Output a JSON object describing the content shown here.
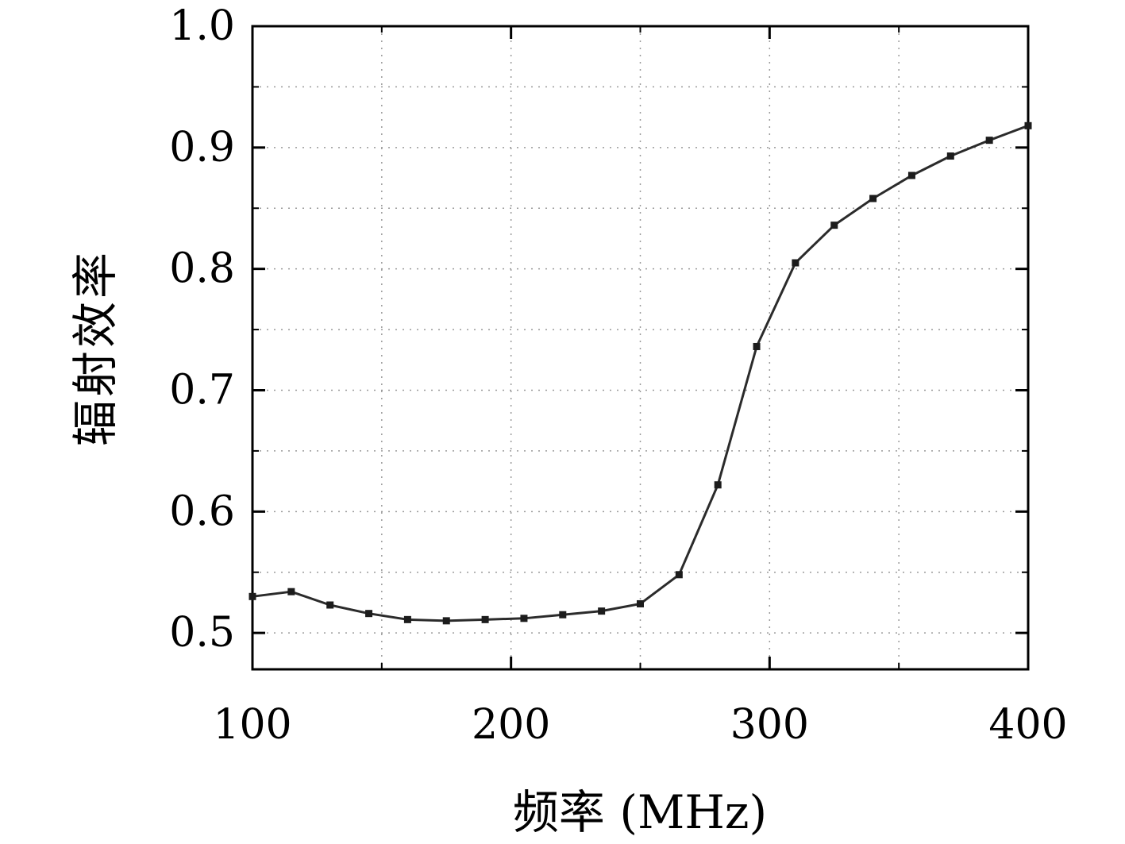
{
  "chart_data": {
    "type": "line",
    "title": "",
    "xlabel": "频率 (MHz)",
    "ylabel": "辐射效率",
    "x": [
      100,
      115,
      130,
      145,
      160,
      175,
      190,
      205,
      220,
      235,
      250,
      265,
      280,
      295,
      310,
      325,
      340,
      355,
      370,
      385,
      400
    ],
    "values": [
      0.53,
      0.534,
      0.523,
      0.516,
      0.511,
      0.51,
      0.511,
      0.512,
      0.515,
      0.518,
      0.524,
      0.548,
      0.622,
      0.736,
      0.805,
      0.836,
      0.858,
      0.877,
      0.893,
      0.906,
      0.918
    ],
    "xlim": [
      100,
      400
    ],
    "ylim": [
      0.47,
      1.0
    ],
    "x_major_ticks": [
      100,
      200,
      300,
      400
    ],
    "x_tick_labels": [
      "100",
      "200",
      "300",
      "400"
    ],
    "x_minor_step": 50,
    "y_major_ticks": [
      0.5,
      0.6,
      0.7,
      0.8,
      0.9,
      1.0
    ],
    "y_tick_labels": [
      "0.5",
      "0.6",
      "0.7",
      "0.8",
      "0.9",
      "1.0"
    ],
    "y_minor_step": 0.05,
    "grid_style": "dotted",
    "legend": "none",
    "marker": "square",
    "line_color": "#2b2b2b",
    "marker_color": "#1c1c1c",
    "grid_color": "#9a9a9a",
    "axis_color": "#000000",
    "background": "#ffffff"
  }
}
